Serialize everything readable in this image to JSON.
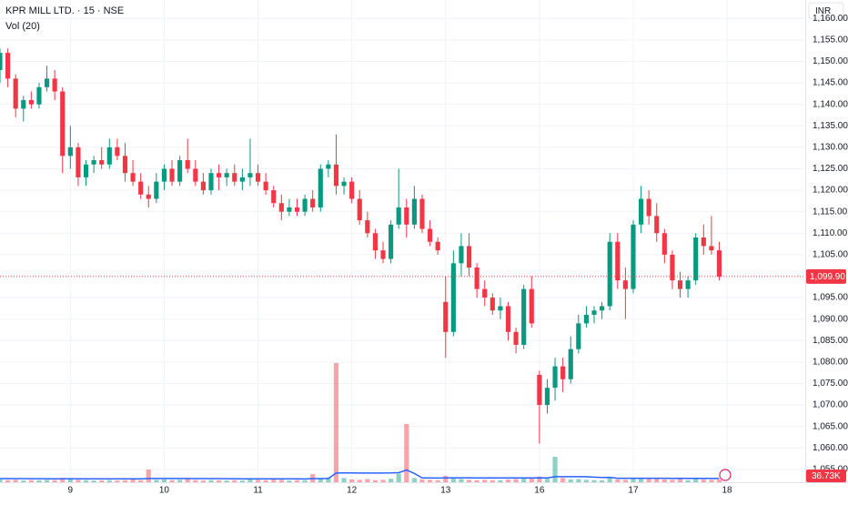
{
  "chart_data": {
    "type": "candlestick",
    "title": "KPR MILL LTD. · 15 · NSE",
    "volume_label": "Vol (20)",
    "currency": "INR",
    "up_color": "#089981",
    "down_color": "#f23645",
    "volume_ma_color": "#2962ff",
    "grid": true,
    "xlim": [
      0,
      103
    ],
    "xticks": [
      {
        "value": 9,
        "label": "9"
      },
      {
        "value": 21,
        "label": "10"
      },
      {
        "value": 33,
        "label": "11"
      },
      {
        "value": 45,
        "label": "12"
      },
      {
        "value": 57,
        "label": "13"
      },
      {
        "value": 69,
        "label": "16"
      },
      {
        "value": 81,
        "label": "17"
      },
      {
        "value": 93,
        "label": "18"
      }
    ],
    "ylim": [
      1052,
      1164.3
    ],
    "yticks": [
      {
        "value": 1055,
        "label": "1,055.00"
      },
      {
        "value": 1060,
        "label": "1,060.00"
      },
      {
        "value": 1065,
        "label": "1,065.00"
      },
      {
        "value": 1070,
        "label": "1,070.00"
      },
      {
        "value": 1075,
        "label": "1,075.00"
      },
      {
        "value": 1080,
        "label": "1,080.00"
      },
      {
        "value": 1085,
        "label": "1,085.00"
      },
      {
        "value": 1090,
        "label": "1,090.00"
      },
      {
        "value": 1095,
        "label": "1,095.00"
      },
      {
        "value": 1105,
        "label": "1,105.00"
      },
      {
        "value": 1110,
        "label": "1,110.00"
      },
      {
        "value": 1115,
        "label": "1,115.00"
      },
      {
        "value": 1120,
        "label": "1,120.00"
      },
      {
        "value": 1125,
        "label": "1,125.00"
      },
      {
        "value": 1130,
        "label": "1,130.00"
      },
      {
        "value": 1135,
        "label": "1,135.00"
      },
      {
        "value": 1140,
        "label": "1,140.00"
      },
      {
        "value": 1145,
        "label": "1,145.00"
      },
      {
        "value": 1150,
        "label": "1,150.00"
      },
      {
        "value": 1155,
        "label": "1,155.00"
      },
      {
        "value": 1160,
        "label": "1,160.00"
      }
    ],
    "vlim": [
      0,
      1800000
    ],
    "open": [
      1148,
      1152,
      1146,
      1139,
      1141,
      1140,
      1144,
      1146,
      1143,
      1128,
      1130,
      1123,
      1126,
      1127,
      1126,
      1130,
      1128,
      1124,
      1122,
      1119,
      1118,
      1122,
      1125,
      1122,
      1127,
      1125,
      1122,
      1120,
      1124,
      1123,
      1124,
      1122,
      1123,
      1124,
      1122,
      1120,
      1117,
      1115,
      1116,
      1115,
      1118,
      1116,
      1125,
      1126,
      1121,
      1122,
      1118,
      1113,
      1110,
      1106,
      1104,
      1112,
      1116,
      1112,
      1118,
      1111,
      1108,
      1094,
      1087,
      1103,
      1107,
      1102,
      1097,
      1095,
      1092,
      1093,
      1087,
      1084,
      1097,
      1077,
      1070,
      1074,
      1079,
      1076,
      1083,
      1089,
      1091,
      1092,
      1093,
      1108,
      1099,
      1097,
      1112,
      1118,
      1114,
      1110,
      1105,
      1099,
      1097,
      1099,
      1109,
      1107,
      1106
    ],
    "high": [
      1153,
      1153,
      1147,
      1142,
      1143,
      1145,
      1149,
      1148,
      1144,
      1135,
      1131,
      1127,
      1128,
      1130,
      1132,
      1132,
      1131,
      1127,
      1124,
      1121,
      1124,
      1126,
      1127,
      1128,
      1132,
      1127,
      1124,
      1125,
      1126,
      1125,
      1126,
      1125,
      1132,
      1126,
      1124,
      1121,
      1119,
      1118,
      1118,
      1119,
      1120,
      1126,
      1127,
      1133,
      1123,
      1123,
      1120,
      1115,
      1111,
      1108,
      1113,
      1125,
      1118,
      1121,
      1119,
      1113,
      1109,
      1100,
      1106,
      1110,
      1110,
      1103,
      1099,
      1096,
      1095,
      1094,
      1088,
      1098,
      1100,
      1078,
      1076,
      1081,
      1081,
      1086,
      1091,
      1093,
      1093,
      1094,
      1110,
      1110,
      1102,
      1113,
      1121,
      1120,
      1117,
      1111,
      1106,
      1101,
      1100,
      1110,
      1112,
      1114,
      1108
    ],
    "low": [
      1145,
      1144,
      1137,
      1136,
      1139,
      1139,
      1143,
      1141,
      1124,
      1125,
      1121,
      1121,
      1124,
      1125,
      1125,
      1127,
      1122,
      1121,
      1118,
      1116,
      1117,
      1120,
      1121,
      1121,
      1124,
      1121,
      1119,
      1119,
      1120,
      1121,
      1121,
      1120,
      1121,
      1121,
      1119,
      1116,
      1113,
      1114,
      1114,
      1114,
      1115,
      1115,
      1123,
      1119,
      1119,
      1117,
      1112,
      1109,
      1104,
      1103,
      1103,
      1111,
      1109,
      1111,
      1110,
      1107,
      1105,
      1081,
      1086,
      1100,
      1100,
      1095,
      1093,
      1091,
      1090,
      1085,
      1082,
      1083,
      1088,
      1061,
      1068,
      1071,
      1073,
      1075,
      1082,
      1088,
      1089,
      1090,
      1092,
      1097,
      1090,
      1096,
      1110,
      1112,
      1108,
      1103,
      1097,
      1095,
      1095,
      1098,
      1105,
      1105,
      1099
    ],
    "close": [
      1152,
      1146,
      1139,
      1141,
      1140,
      1144,
      1146,
      1143,
      1128,
      1130,
      1123,
      1126,
      1127,
      1126,
      1130,
      1128,
      1124,
      1122,
      1119,
      1118,
      1122,
      1125,
      1122,
      1127,
      1125,
      1122,
      1120,
      1124,
      1123,
      1124,
      1122,
      1123,
      1124,
      1122,
      1120,
      1117,
      1115,
      1116,
      1115,
      1118,
      1116,
      1125,
      1126,
      1121,
      1122,
      1118,
      1113,
      1110,
      1106,
      1104,
      1112,
      1116,
      1112,
      1118,
      1111,
      1108,
      1106,
      1087,
      1103,
      1107,
      1102,
      1097,
      1095,
      1092,
      1093,
      1087,
      1084,
      1097,
      1089,
      1070,
      1074,
      1079,
      1076,
      1083,
      1089,
      1091,
      1092,
      1093,
      1108,
      1099,
      1097,
      1112,
      1118,
      1114,
      1110,
      1105,
      1099,
      1097,
      1099,
      1109,
      1107,
      1106,
      1099.9
    ],
    "volume": [
      40000,
      30000,
      35000,
      25000,
      30000,
      28000,
      35000,
      30000,
      60000,
      45000,
      35000,
      30000,
      25000,
      28000,
      30000,
      25000,
      30000,
      40000,
      30000,
      180000,
      35000,
      40000,
      30000,
      35000,
      45000,
      30000,
      25000,
      30000,
      28000,
      25000,
      30000,
      25000,
      45000,
      35000,
      30000,
      40000,
      35000,
      25000,
      30000,
      28000,
      115000,
      45000,
      70000,
      1685000,
      60000,
      40000,
      35000,
      45000,
      30000,
      35000,
      50000,
      120000,
      823000,
      60000,
      40000,
      35000,
      30000,
      90000,
      60000,
      45000,
      35000,
      30000,
      35000,
      30000,
      28000,
      40000,
      45000,
      60000,
      55000,
      80000,
      50000,
      360000,
      60000,
      40000,
      45000,
      35000,
      30000,
      28000,
      70000,
      40000,
      35000,
      60000,
      55000,
      45000,
      50000,
      40000,
      35000,
      60000,
      30000,
      45000,
      40000,
      35000,
      36730
    ],
    "volume_ma": [
      52000,
      52000,
      51000,
      51000,
      50000,
      50000,
      50000,
      49000,
      50000,
      50000,
      50000,
      49000,
      49000,
      48000,
      48000,
      47000,
      47000,
      47000,
      47000,
      53000,
      53000,
      53000,
      53000,
      53000,
      53000,
      52000,
      52000,
      52000,
      51000,
      50000,
      50000,
      48000,
      48000,
      47000,
      47000,
      48000,
      48000,
      47000,
      47000,
      46000,
      51000,
      51000,
      53000,
      130000,
      131000,
      131000,
      130000,
      130000,
      130000,
      130000,
      131000,
      135000,
      172000,
      125000,
      60000,
      60000,
      59000,
      62000,
      63000,
      63000,
      63000,
      62000,
      62000,
      61000,
      61000,
      60000,
      60000,
      60000,
      61000,
      63000,
      61000,
      78000,
      78000,
      78000,
      78000,
      78000,
      72000,
      68000,
      70000,
      56000,
      56000,
      57000,
      57000,
      56000,
      56000,
      56000,
      55000,
      56000,
      55000,
      55000,
      54000,
      54000,
      53000
    ],
    "last_price": {
      "value": 1099.9,
      "label": "1,099.90"
    },
    "last_volume": {
      "value": 36730,
      "label": "36.73K"
    }
  }
}
